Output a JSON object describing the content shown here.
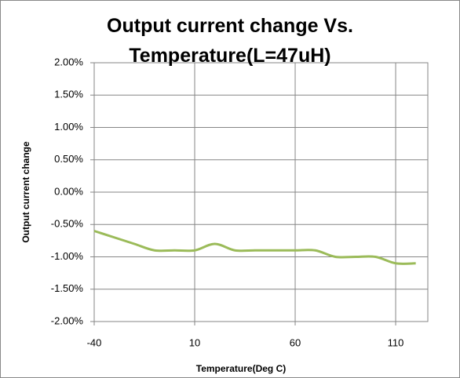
{
  "chart_data": {
    "type": "line",
    "title": "Output current change Vs. Temperature(L=47uH)",
    "xlabel": "Temperature(Deg C)",
    "ylabel": "Output current change",
    "x": [
      -40,
      -30,
      -20,
      -10,
      0,
      10,
      20,
      30,
      40,
      50,
      60,
      70,
      80,
      90,
      100,
      110,
      120
    ],
    "series": [
      {
        "name": "Output current change",
        "color": "#9bbb59",
        "values": [
          -0.6,
          -0.7,
          -0.8,
          -0.9,
          -0.9,
          -0.9,
          -0.8,
          -0.9,
          -0.9,
          -0.9,
          -0.9,
          -0.9,
          -1.0,
          -1.0,
          -1.0,
          -1.1,
          -1.1
        ]
      }
    ],
    "xlim": [
      -40,
      126
    ],
    "xticks": [
      -40,
      10,
      60,
      110
    ],
    "ylim": [
      -2,
      2
    ],
    "yticks": [
      {
        "value": -2,
        "label": "-2.00%"
      },
      {
        "value": -1.5,
        "label": "-1.50%"
      },
      {
        "value": -1,
        "label": "-1.00%"
      },
      {
        "value": -0.5,
        "label": "-0.50%"
      },
      {
        "value": 0,
        "label": "0.00%"
      },
      {
        "value": 0.5,
        "label": "0.50%"
      },
      {
        "value": 1,
        "label": "1.00%"
      },
      {
        "value": 1.5,
        "label": "1.50%"
      },
      {
        "value": 2,
        "label": "2.00%"
      }
    ],
    "grid": true
  }
}
